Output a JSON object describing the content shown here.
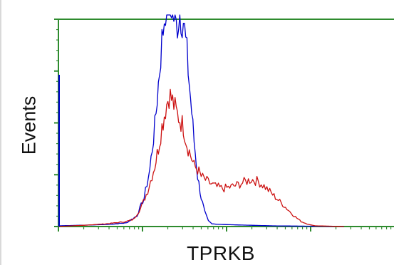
{
  "chart_data": {
    "type": "line",
    "title": "",
    "xlabel": "TPRKB",
    "ylabel": "Events",
    "x_scale": "log",
    "grid": false,
    "legend": "none",
    "colors": {
      "axis": "#2e8b2e",
      "blue_series": "#0000cc",
      "red_series": "#cc1111"
    },
    "series": [
      {
        "color": "#0000cc",
        "points": [
          [
            0,
            1
          ],
          [
            40,
            2
          ],
          [
            70,
            3
          ],
          [
            95,
            5
          ],
          [
            110,
            15
          ],
          [
            120,
            40
          ],
          [
            128,
            80
          ],
          [
            135,
            140
          ],
          [
            140,
            200
          ],
          [
            145,
            260
          ],
          [
            150,
            310
          ],
          [
            155,
            330
          ],
          [
            160,
            300
          ],
          [
            165,
            280
          ],
          [
            170,
            300
          ],
          [
            175,
            290
          ],
          [
            180,
            240
          ],
          [
            185,
            180
          ],
          [
            190,
            120
          ],
          [
            195,
            70
          ],
          [
            200,
            40
          ],
          [
            205,
            20
          ],
          [
            210,
            8
          ],
          [
            215,
            4
          ],
          [
            225,
            3
          ],
          [
            260,
            2
          ],
          [
            300,
            1
          ],
          [
            400,
            0
          ]
        ]
      },
      {
        "color": "#cc1111",
        "points": [
          [
            0,
            0
          ],
          [
            40,
            2
          ],
          [
            70,
            4
          ],
          [
            95,
            7
          ],
          [
            105,
            10
          ],
          [
            115,
            25
          ],
          [
            125,
            50
          ],
          [
            135,
            85
          ],
          [
            140,
            110
          ],
          [
            145,
            140
          ],
          [
            150,
            165
          ],
          [
            155,
            185
          ],
          [
            160,
            175
          ],
          [
            165,
            160
          ],
          [
            170,
            150
          ],
          [
            175,
            140
          ],
          [
            180,
            115
          ],
          [
            185,
            100
          ],
          [
            190,
            85
          ],
          [
            195,
            80
          ],
          [
            200,
            70
          ],
          [
            210,
            62
          ],
          [
            220,
            56
          ],
          [
            230,
            53
          ],
          [
            240,
            55
          ],
          [
            250,
            58
          ],
          [
            260,
            62
          ],
          [
            270,
            66
          ],
          [
            280,
            63
          ],
          [
            290,
            55
          ],
          [
            300,
            45
          ],
          [
            310,
            35
          ],
          [
            320,
            25
          ],
          [
            330,
            15
          ],
          [
            340,
            7
          ],
          [
            350,
            3
          ],
          [
            360,
            1
          ],
          [
            400,
            0
          ]
        ]
      }
    ]
  }
}
